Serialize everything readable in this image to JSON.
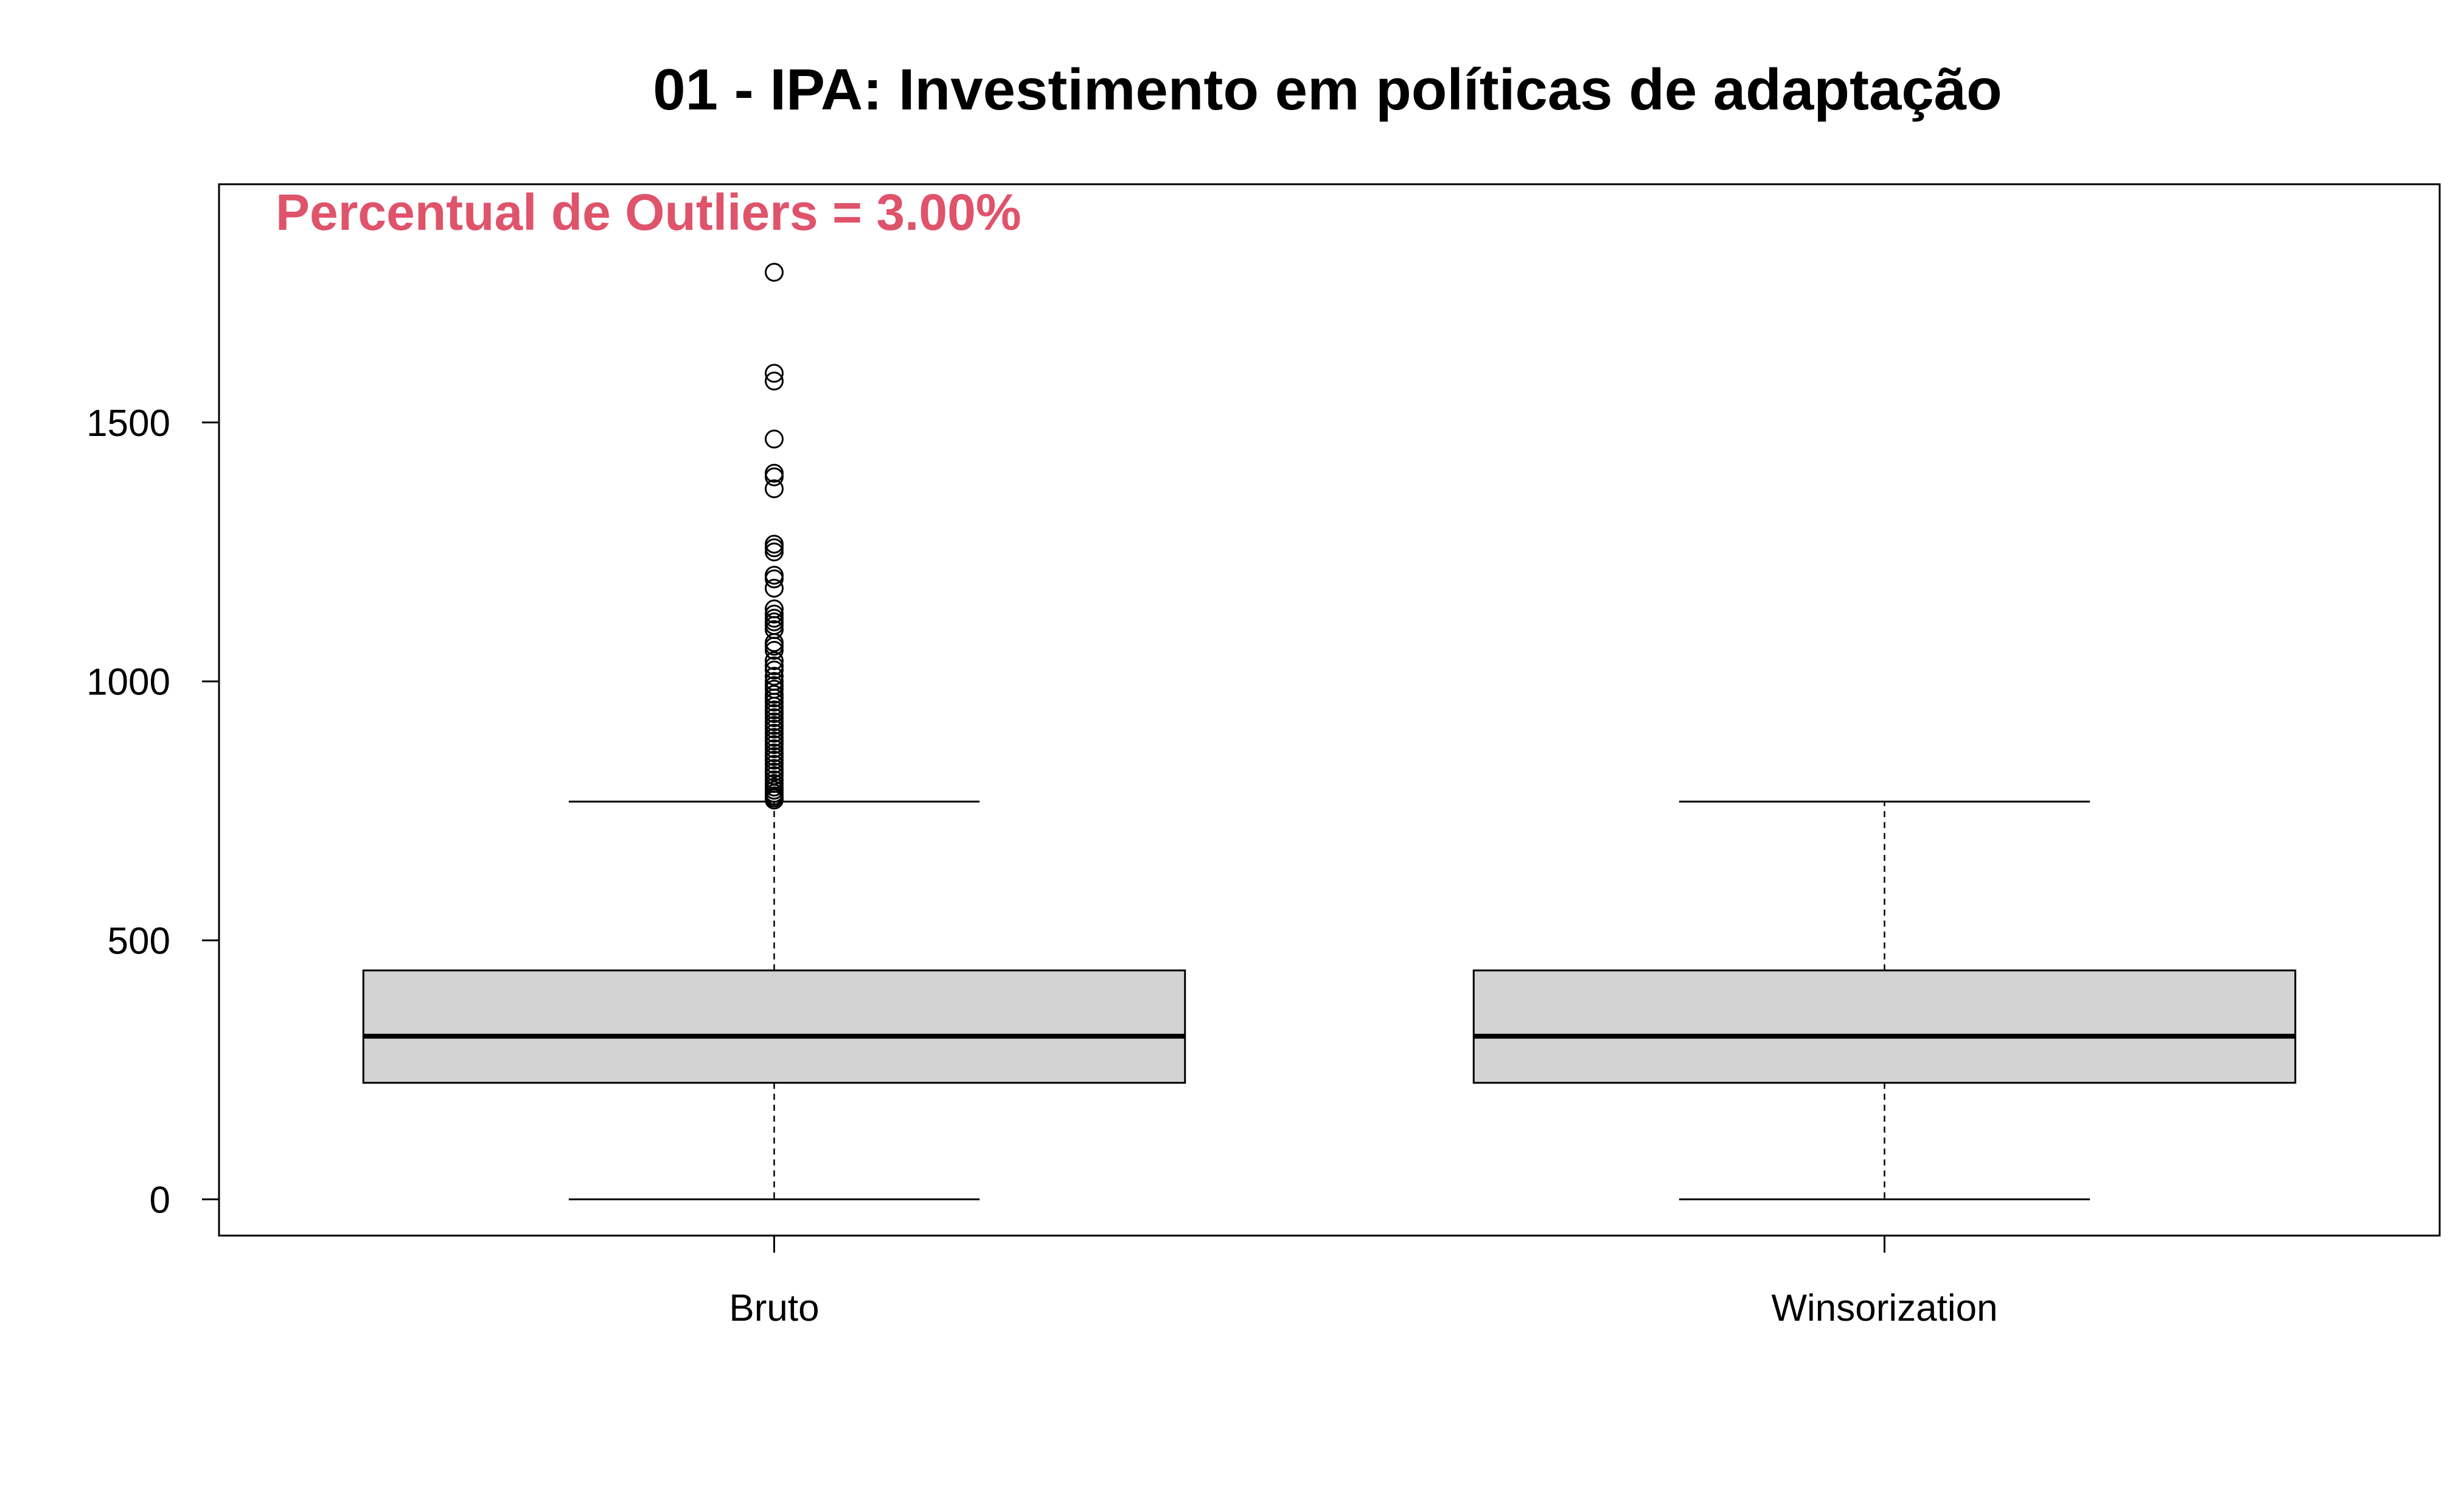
{
  "chart_data": {
    "type": "boxplot",
    "title": "01 - IPA: Investimento em políticas de adaptação",
    "xlabel": "",
    "ylabel": "",
    "categories": [
      "Bruto",
      "Winsorization"
    ],
    "ylim": [
      -70,
      1960
    ],
    "yticks": [
      0,
      500,
      1000,
      1500
    ],
    "grid": false,
    "annotation": {
      "text": "Percentual de Outliers = 3.00%",
      "color": "#DF536B"
    },
    "colors": {
      "box_fill": "#D3D3D3",
      "stroke": "#000000"
    },
    "series": [
      {
        "category": "Bruto",
        "min": 0,
        "q1": 225,
        "median": 315,
        "q3": 442,
        "max": 768,
        "outliers": [
          1790,
          1595,
          1580,
          1468,
          1402,
          1395,
          1372,
          1265,
          1258,
          1250,
          1205,
          1198,
          1180,
          1140,
          1130,
          1122,
          1115,
          1108,
          1100,
          1075,
          1068,
          1060,
          1040,
          1030,
          1022,
          1010,
          1000,
          992,
          985,
          975,
          968,
          960,
          952,
          945,
          938,
          930,
          922,
          915,
          908,
          900,
          892,
          885,
          878,
          870,
          862,
          855,
          848,
          840,
          832,
          825,
          818,
          810,
          803,
          796,
          790,
          784,
          779,
          775,
          771
        ]
      },
      {
        "category": "Winsorization",
        "min": 0,
        "q1": 225,
        "median": 315,
        "q3": 442,
        "max": 768,
        "outliers": []
      }
    ]
  }
}
